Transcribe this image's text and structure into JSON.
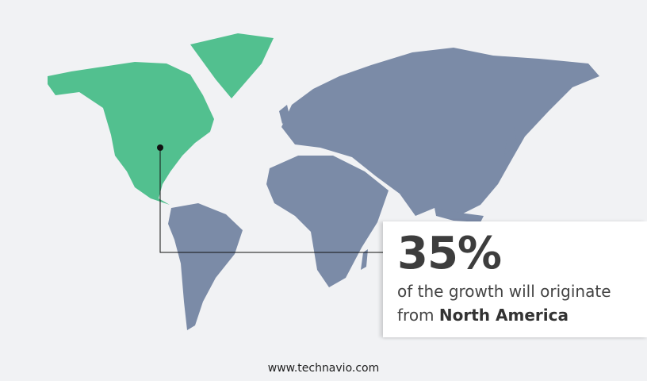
{
  "colors": {
    "highlight_region": "#52c08f",
    "other_regions": "#7b8ba7",
    "background": "#f1f2f4"
  },
  "highlight_region": "North America",
  "callout": {
    "percent": "35%",
    "line1": "of the growth will originate",
    "line2_prefix": "from",
    "region": "North America"
  },
  "footer": {
    "site": "www.technavio.com"
  }
}
